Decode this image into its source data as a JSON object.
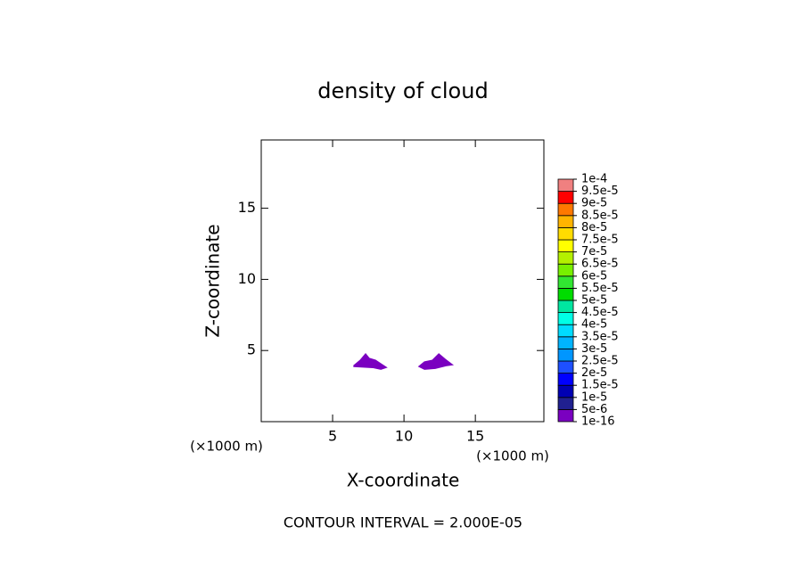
{
  "chart_data": {
    "type": "contour",
    "title": "density of cloud",
    "x_label": "X-coordinate",
    "y_label": "Z-coordinate",
    "x_unit": "(×1000 m)",
    "y_unit": "(×1000 m)",
    "annotation": "CONTOUR INTERVAL = 2.000E-05",
    "xlim": [
      0,
      19.8
    ],
    "ylim": [
      0,
      19.8
    ],
    "xticks": [
      5,
      10,
      15
    ],
    "yticks": [
      5,
      10,
      15
    ],
    "regions": [
      {
        "color": "#7a00c0",
        "x": [
          6.5,
          6.94,
          7.31,
          7.56,
          8.0,
          8.38,
          8.75,
          8.38,
          7.81,
          6.5
        ],
        "z": [
          3.94,
          4.31,
          4.75,
          4.44,
          4.31,
          4.06,
          3.81,
          3.69,
          3.81,
          3.88
        ]
      },
      {
        "color": "#7a00c0",
        "x": [
          11.06,
          11.44,
          12.0,
          12.44,
          12.88,
          13.38,
          12.94,
          12.19,
          11.44
        ],
        "z": [
          3.88,
          4.19,
          4.31,
          4.75,
          4.38,
          4.0,
          3.94,
          3.75,
          3.69
        ]
      }
    ],
    "colorbar": {
      "ticks": [
        {
          "value": 1e-16,
          "label": "1e-16"
        },
        {
          "value": 5e-06,
          "label": "5e-6"
        },
        {
          "value": 1e-05,
          "label": "1e-5"
        },
        {
          "value": 1.5e-05,
          "label": "1.5e-5"
        },
        {
          "value": 2e-05,
          "label": "2e-5"
        },
        {
          "value": 2.5e-05,
          "label": "2.5e-5"
        },
        {
          "value": 3e-05,
          "label": "3e-5"
        },
        {
          "value": 3.5e-05,
          "label": "3.5e-5"
        },
        {
          "value": 4e-05,
          "label": "4e-5"
        },
        {
          "value": 4.5e-05,
          "label": "4.5e-5"
        },
        {
          "value": 5e-05,
          "label": "5e-5"
        },
        {
          "value": 5.5e-05,
          "label": "5.5e-5"
        },
        {
          "value": 6e-05,
          "label": "6e-5"
        },
        {
          "value": 6.5e-05,
          "label": "6.5e-5"
        },
        {
          "value": 7e-05,
          "label": "7e-5"
        },
        {
          "value": 7.5e-05,
          "label": "7.5e-5"
        },
        {
          "value": 8e-05,
          "label": "8e-5"
        },
        {
          "value": 8.5e-05,
          "label": "8.5e-5"
        },
        {
          "value": 9e-05,
          "label": "9e-5"
        },
        {
          "value": 9.5e-05,
          "label": "9.5e-5"
        },
        {
          "value": 0.0001,
          "label": "1e-4"
        }
      ],
      "colors": [
        "#7a00c0",
        "#202090",
        "#0000b4",
        "#0000ff",
        "#1e50ff",
        "#0096ff",
        "#00b4ff",
        "#00dcff",
        "#00ffe6",
        "#00e6a0",
        "#00dc00",
        "#32e632",
        "#78f000",
        "#b4f000",
        "#ffff00",
        "#ffdc00",
        "#ffb400",
        "#ff7800",
        "#ff0000",
        "#f08080"
      ]
    }
  }
}
